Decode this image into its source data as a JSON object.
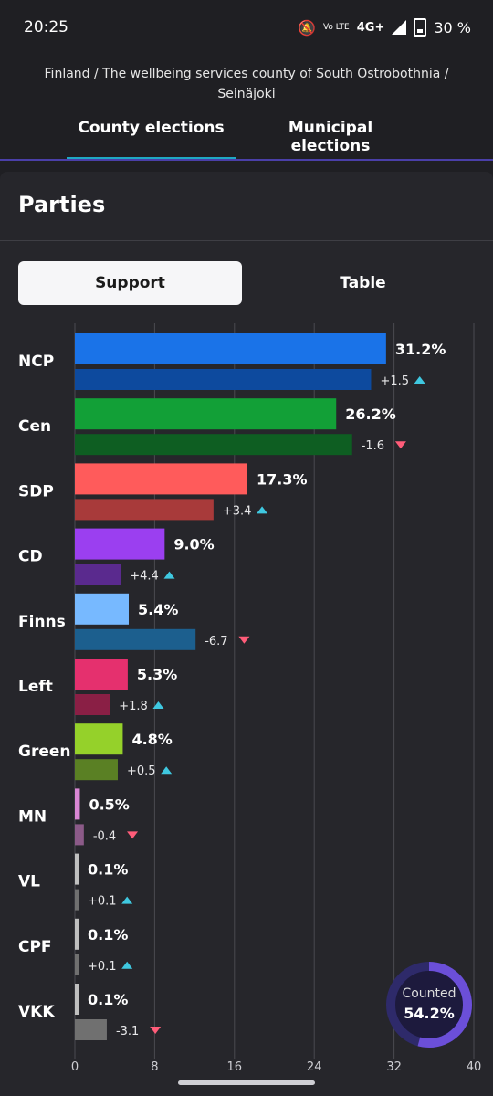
{
  "status": {
    "time": "20:25",
    "network": "4G+",
    "volte": "Vo LTE",
    "battery": "30 %"
  },
  "breadcrumb": {
    "country": "Finland",
    "sep1": "/",
    "county": "The wellbeing services county of South Ostrobothnia",
    "sep2": "/",
    "municipality": "Seinäjoki"
  },
  "tabs": [
    {
      "label": "County elections",
      "active": true
    },
    {
      "label": "Municipal elections",
      "active": false
    }
  ],
  "section_title": "Parties",
  "segment": {
    "support": "Support",
    "table": "Table"
  },
  "counted": {
    "label": "Counted",
    "value": "54.2%",
    "fraction": 0.542
  },
  "colors": {
    "up": "#3fc8e0",
    "down": "#ff5c79",
    "accent": "#1fa8c4"
  },
  "chart_data": {
    "type": "bar",
    "orientation": "horizontal",
    "xlim": [
      0,
      40
    ],
    "xticks": [
      "0",
      "8",
      "16",
      "24",
      "32",
      "40"
    ],
    "grid": true,
    "categories": [
      "NCP",
      "Cen",
      "SDP",
      "CD",
      "Finns",
      "Left",
      "Green",
      "MN",
      "VL",
      "CPF",
      "VKK"
    ],
    "series": [
      {
        "values": [
          31.2,
          26.2,
          17.3,
          9.0,
          5.4,
          5.3,
          4.8,
          0.5,
          0.1,
          0.1,
          0.1
        ],
        "labels": [
          "31.2%",
          "26.2%",
          "17.3%",
          "9.0%",
          "5.4%",
          "5.3%",
          "4.8%",
          "0.5%",
          "0.1%",
          "0.1%",
          "0.1%"
        ],
        "colors": [
          "#1a73e8",
          "#12a037",
          "#ff5b5b",
          "#9b3ff0",
          "#77b9ff",
          "#e5306e",
          "#95d12a",
          "#d986d4",
          "#bfbfbf",
          "#bfbfbf",
          "#bfbfbf"
        ]
      },
      {
        "values": [
          29.7,
          27.8,
          13.9,
          4.6,
          12.1,
          3.5,
          4.3,
          0.9,
          0.0,
          0.0,
          3.2
        ],
        "changes": [
          "+1.5",
          "-1.6",
          "+3.4",
          "+4.4",
          "-6.7",
          "+1.8",
          "+0.5",
          "-0.4",
          "+0.1",
          "+0.1",
          "-3.1"
        ],
        "directions": [
          "up",
          "down",
          "up",
          "up",
          "down",
          "up",
          "up",
          "down",
          "up",
          "up",
          "down"
        ],
        "colors": [
          "#0d4a9e",
          "#0e5e22",
          "#a83a3a",
          "#5a2a8e",
          "#1c5f8e",
          "#8a1f45",
          "#5a8024",
          "#8b5a88",
          "#707070",
          "#707070",
          "#707070"
        ]
      }
    ]
  }
}
